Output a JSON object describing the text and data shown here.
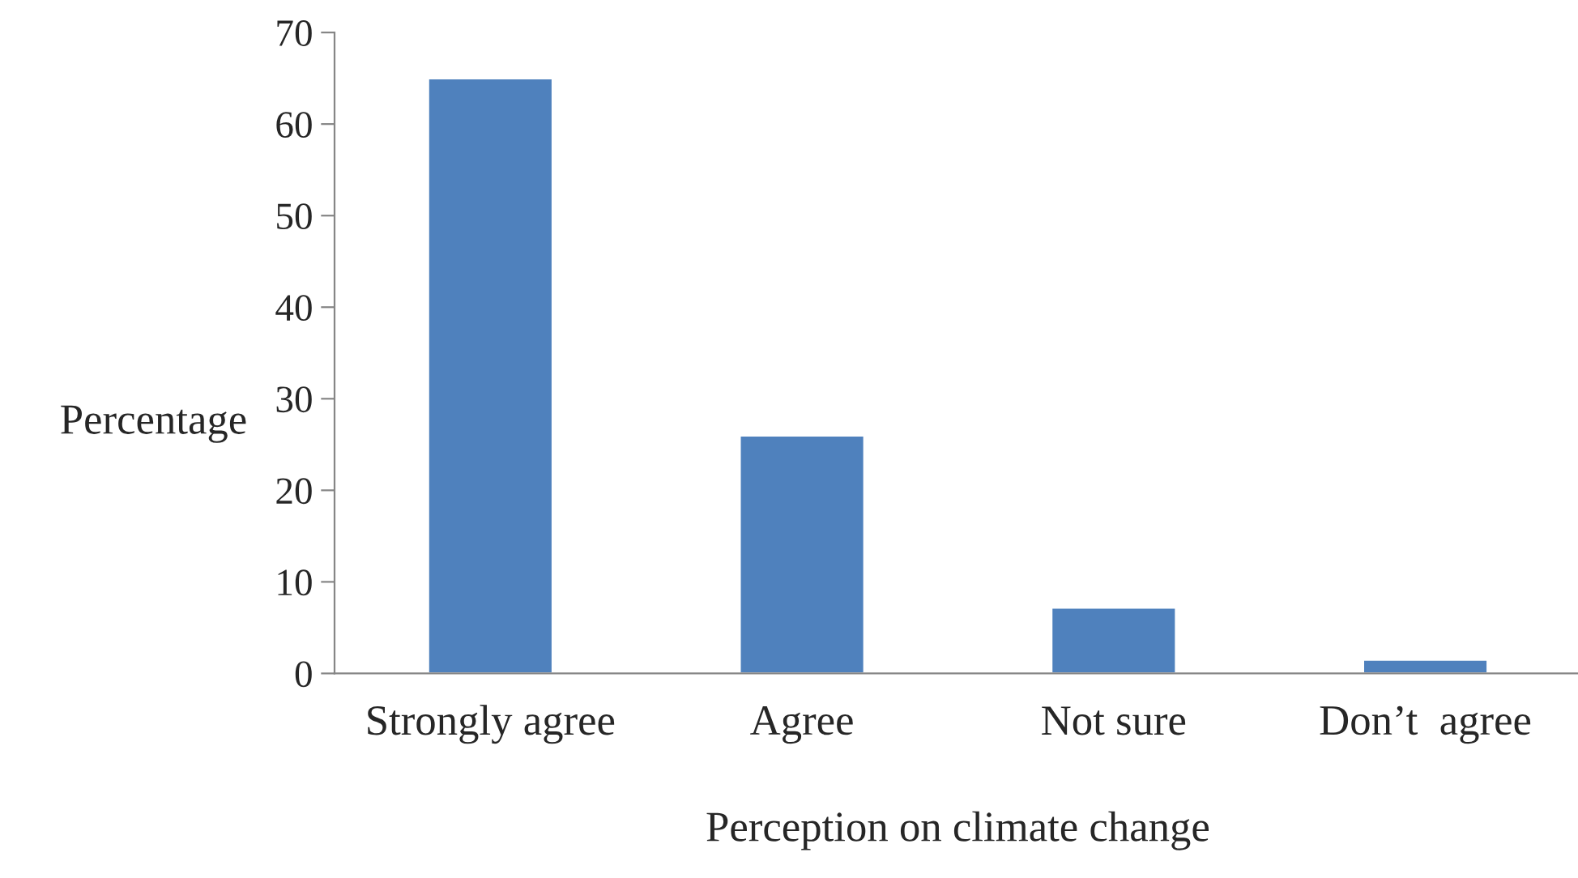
{
  "chart_data": {
    "type": "bar",
    "xlabel": "Perception on climate change",
    "ylabel": "Percentage",
    "categories": [
      "Strongly agree",
      "Agree",
      "Not sure",
      "Don’t  agree"
    ],
    "values": [
      65,
      26,
      7.2,
      1.5
    ],
    "color": "#4f81bd",
    "ylim": [
      0,
      70
    ],
    "yticks": [
      0,
      10,
      20,
      30,
      40,
      50,
      60,
      70
    ],
    "grid": false,
    "legend": false
  }
}
